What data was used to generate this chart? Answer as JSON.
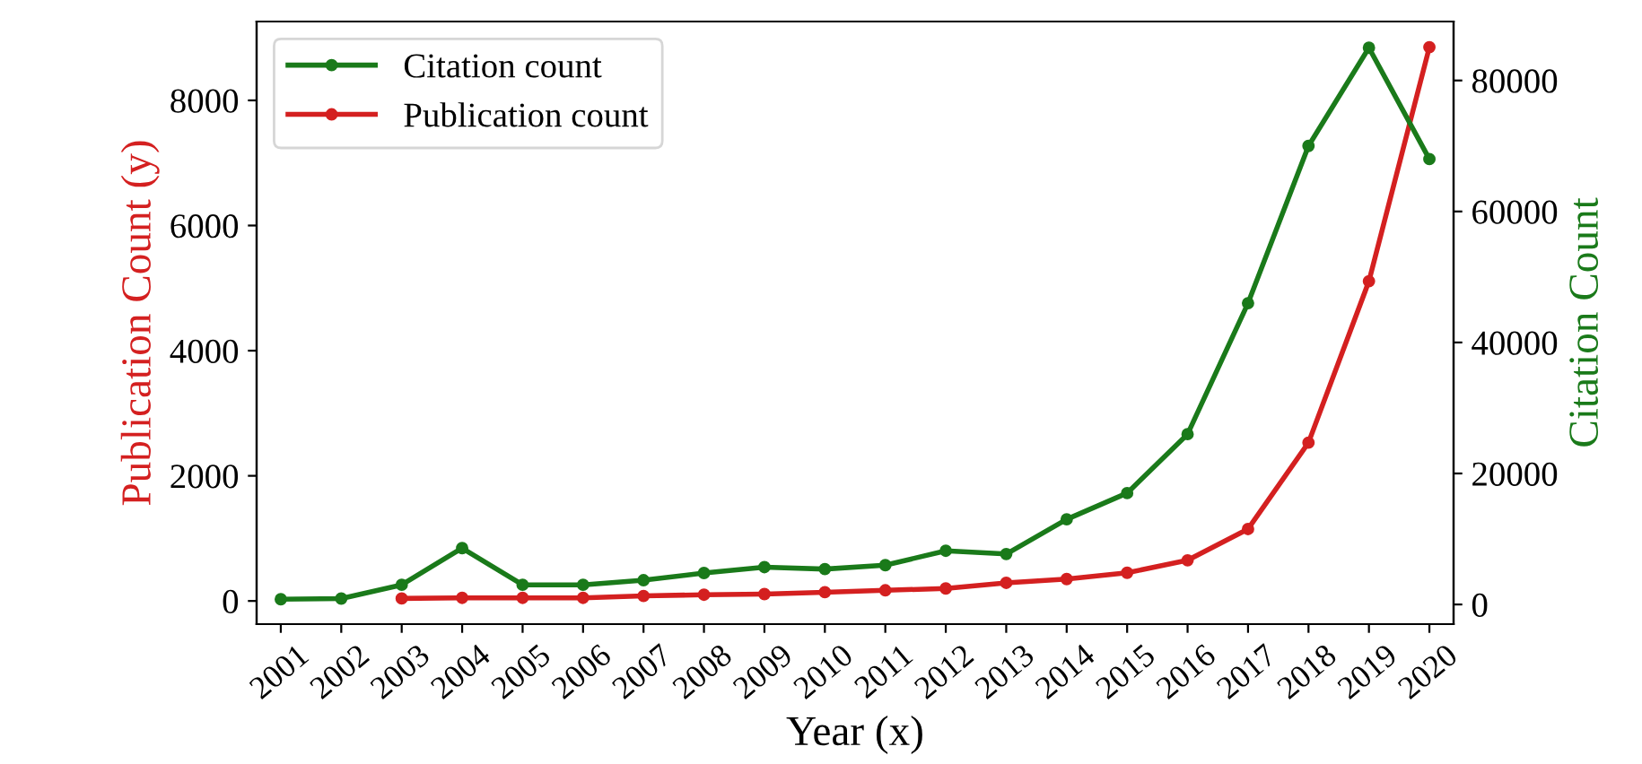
{
  "chart_data": {
    "type": "line",
    "xlabel": "Year (x)",
    "ylabel": "Publication Count (y)",
    "y2label": "Citation Count",
    "categories": [
      "2001",
      "2002",
      "2003",
      "2004",
      "2005",
      "2006",
      "2007",
      "2008",
      "2009",
      "2010",
      "2011",
      "2012",
      "2013",
      "2014",
      "2015",
      "2016",
      "2017",
      "2018",
      "2019",
      "2020"
    ],
    "series": [
      {
        "name": "Citation count",
        "color": "#1a7a1a",
        "axis": "y2",
        "values": [
          800,
          900,
          3000,
          8600,
          3000,
          3000,
          3700,
          4800,
          5700,
          5400,
          6000,
          8200,
          7700,
          13000,
          17000,
          26000,
          46000,
          70000,
          85000,
          68000
        ]
      },
      {
        "name": "Publication count",
        "color": "#d42020",
        "axis": "y",
        "values": [
          null,
          null,
          40,
          50,
          50,
          50,
          80,
          100,
          110,
          140,
          170,
          200,
          290,
          350,
          450,
          650,
          1150,
          2530,
          5110,
          8850
        ]
      }
    ],
    "ylim": [
      -370,
      9260
    ],
    "yticks": [
      0,
      2000,
      4000,
      6000,
      8000
    ],
    "y2lim": [
      -3000,
      89000
    ],
    "y2ticks": [
      0,
      20000,
      40000,
      60000,
      80000
    ],
    "legend": "top left",
    "marker": "circle",
    "line_style": "solid",
    "grid": false
  }
}
